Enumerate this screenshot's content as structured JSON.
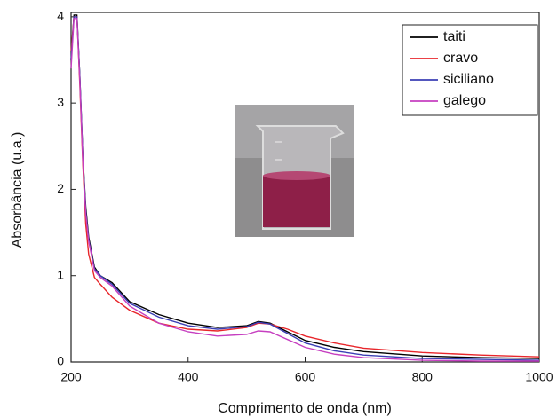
{
  "chart_data": {
    "type": "line",
    "x_label": "Comprimento de onda (nm)",
    "y_label": "Absorbância (u.a.)",
    "x": [
      200,
      205,
      210,
      215,
      220,
      225,
      230,
      240,
      250,
      270,
      300,
      350,
      400,
      450,
      500,
      520,
      540,
      570,
      600,
      650,
      700,
      800,
      900,
      1000
    ],
    "series": [
      {
        "name": "taiti",
        "color": "#000000",
        "values": [
          3.5,
          4.02,
          4.02,
          3.3,
          2.4,
          1.8,
          1.45,
          1.1,
          1.0,
          0.92,
          0.7,
          0.55,
          0.45,
          0.4,
          0.42,
          0.47,
          0.45,
          0.35,
          0.25,
          0.17,
          0.12,
          0.07,
          0.05,
          0.04
        ]
      },
      {
        "name": "cravo",
        "color": "#e8262b",
        "values": [
          3.6,
          4.0,
          4.0,
          3.2,
          2.3,
          1.6,
          1.25,
          0.98,
          0.9,
          0.75,
          0.6,
          0.45,
          0.38,
          0.36,
          0.4,
          0.45,
          0.44,
          0.38,
          0.3,
          0.22,
          0.16,
          0.11,
          0.08,
          0.06
        ]
      },
      {
        "name": "siciliano",
        "color": "#3b3fb5",
        "values": [
          3.5,
          4.0,
          4.0,
          3.3,
          2.4,
          1.75,
          1.42,
          1.08,
          1.0,
          0.9,
          0.68,
          0.52,
          0.42,
          0.38,
          0.41,
          0.46,
          0.44,
          0.33,
          0.22,
          0.13,
          0.08,
          0.04,
          0.03,
          0.02
        ]
      },
      {
        "name": "galego",
        "color": "#c63fc0",
        "values": [
          3.4,
          3.98,
          3.98,
          3.25,
          2.35,
          1.72,
          1.4,
          1.06,
          0.98,
          0.88,
          0.65,
          0.45,
          0.35,
          0.3,
          0.32,
          0.36,
          0.35,
          0.26,
          0.17,
          0.09,
          0.05,
          0.02,
          0.01,
          0.01
        ]
      }
    ],
    "xlim": [
      200,
      1000
    ],
    "ylim": [
      0,
      4.05
    ],
    "xticks": [
      200,
      400,
      600,
      800,
      1000
    ],
    "yticks": [
      0,
      1,
      2,
      3,
      4
    ],
    "legend": "upper right"
  }
}
